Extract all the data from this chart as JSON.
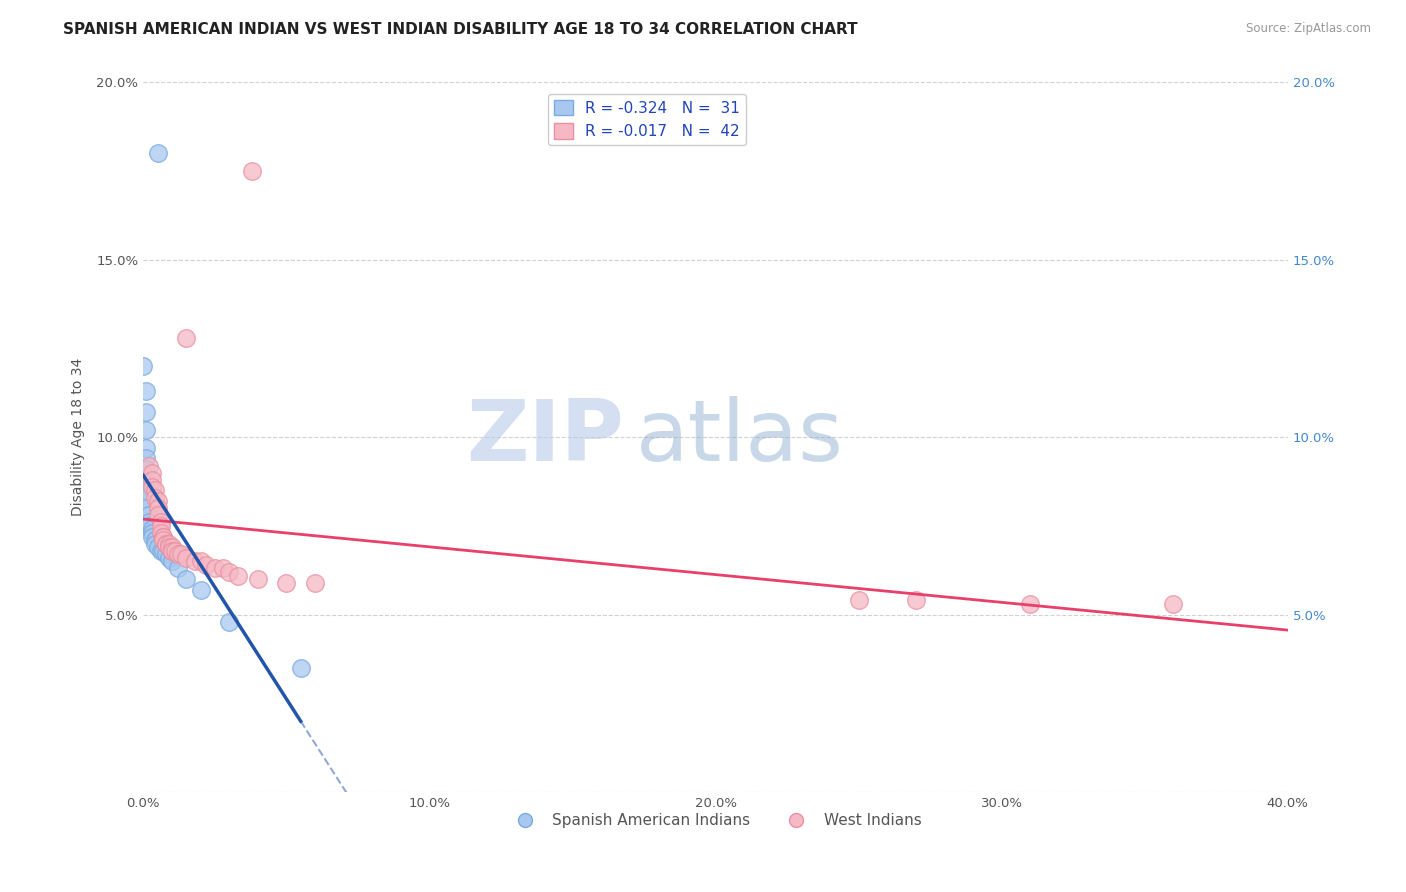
{
  "title": "SPANISH AMERICAN INDIAN VS WEST INDIAN DISABILITY AGE 18 TO 34 CORRELATION CHART",
  "source": "Source: ZipAtlas.com",
  "ylabel": "Disability Age 18 to 34",
  "xlim": [
    0.0,
    0.4
  ],
  "ylim": [
    0.0,
    0.2
  ],
  "xticks": [
    0.0,
    0.1,
    0.2,
    0.3,
    0.4
  ],
  "xtick_labels": [
    "0.0%",
    "10.0%",
    "20.0%",
    "30.0%",
    "40.0%"
  ],
  "yticks": [
    0.0,
    0.05,
    0.1,
    0.15,
    0.2
  ],
  "ytick_labels_left": [
    "",
    "5.0%",
    "10.0%",
    "15.0%",
    "20.0%"
  ],
  "ytick_labels_right": [
    "",
    "5.0%",
    "10.0%",
    "15.0%",
    "20.0%"
  ],
  "legend1_r": "R = -0.324",
  "legend1_n": "N =  31",
  "legend2_r": "R = -0.017",
  "legend2_n": "N =  42",
  "blue_color": "#A8C8F0",
  "pink_color": "#F5B8C4",
  "blue_edge_color": "#7AAADE",
  "pink_edge_color": "#E890A0",
  "blue_line_color": "#2255AA",
  "pink_line_color": "#E8406A",
  "blue_scatter": [
    [
      0.005,
      0.18
    ],
    [
      0.0,
      0.12
    ],
    [
      0.001,
      0.113
    ],
    [
      0.001,
      0.107
    ],
    [
      0.001,
      0.102
    ],
    [
      0.001,
      0.097
    ],
    [
      0.001,
      0.094
    ],
    [
      0.001,
      0.091
    ],
    [
      0.001,
      0.088
    ],
    [
      0.001,
      0.085
    ],
    [
      0.001,
      0.083
    ],
    [
      0.001,
      0.08
    ],
    [
      0.002,
      0.078
    ],
    [
      0.002,
      0.076
    ],
    [
      0.002,
      0.075
    ],
    [
      0.003,
      0.074
    ],
    [
      0.003,
      0.073
    ],
    [
      0.003,
      0.072
    ],
    [
      0.004,
      0.071
    ],
    [
      0.004,
      0.07
    ],
    [
      0.005,
      0.069
    ],
    [
      0.006,
      0.068
    ],
    [
      0.007,
      0.068
    ],
    [
      0.008,
      0.067
    ],
    [
      0.009,
      0.066
    ],
    [
      0.01,
      0.065
    ],
    [
      0.012,
      0.063
    ],
    [
      0.015,
      0.06
    ],
    [
      0.02,
      0.057
    ],
    [
      0.03,
      0.048
    ],
    [
      0.055,
      0.035
    ]
  ],
  "pink_scatter": [
    [
      0.038,
      0.175
    ],
    [
      0.015,
      0.128
    ],
    [
      0.002,
      0.092
    ],
    [
      0.003,
      0.09
    ],
    [
      0.003,
      0.088
    ],
    [
      0.003,
      0.086
    ],
    [
      0.004,
      0.085
    ],
    [
      0.004,
      0.083
    ],
    [
      0.005,
      0.082
    ],
    [
      0.005,
      0.08
    ],
    [
      0.005,
      0.078
    ],
    [
      0.006,
      0.076
    ],
    [
      0.006,
      0.075
    ],
    [
      0.006,
      0.073
    ],
    [
      0.007,
      0.072
    ],
    [
      0.007,
      0.072
    ],
    [
      0.007,
      0.071
    ],
    [
      0.008,
      0.07
    ],
    [
      0.008,
      0.07
    ],
    [
      0.009,
      0.07
    ],
    [
      0.009,
      0.069
    ],
    [
      0.01,
      0.069
    ],
    [
      0.01,
      0.068
    ],
    [
      0.01,
      0.068
    ],
    [
      0.011,
      0.068
    ],
    [
      0.012,
      0.067
    ],
    [
      0.013,
      0.067
    ],
    [
      0.015,
      0.066
    ],
    [
      0.018,
      0.065
    ],
    [
      0.02,
      0.065
    ],
    [
      0.022,
      0.064
    ],
    [
      0.025,
      0.063
    ],
    [
      0.028,
      0.063
    ],
    [
      0.03,
      0.062
    ],
    [
      0.033,
      0.061
    ],
    [
      0.04,
      0.06
    ],
    [
      0.05,
      0.059
    ],
    [
      0.06,
      0.059
    ],
    [
      0.25,
      0.054
    ],
    [
      0.27,
      0.054
    ],
    [
      0.31,
      0.053
    ],
    [
      0.36,
      0.053
    ]
  ],
  "watermark_zip": "ZIP",
  "watermark_atlas": "atlas",
  "background_color": "#FFFFFF",
  "grid_color": "#CCCCCC",
  "title_fontsize": 11,
  "axis_label_fontsize": 10,
  "tick_fontsize": 9.5,
  "legend_fontsize": 11
}
